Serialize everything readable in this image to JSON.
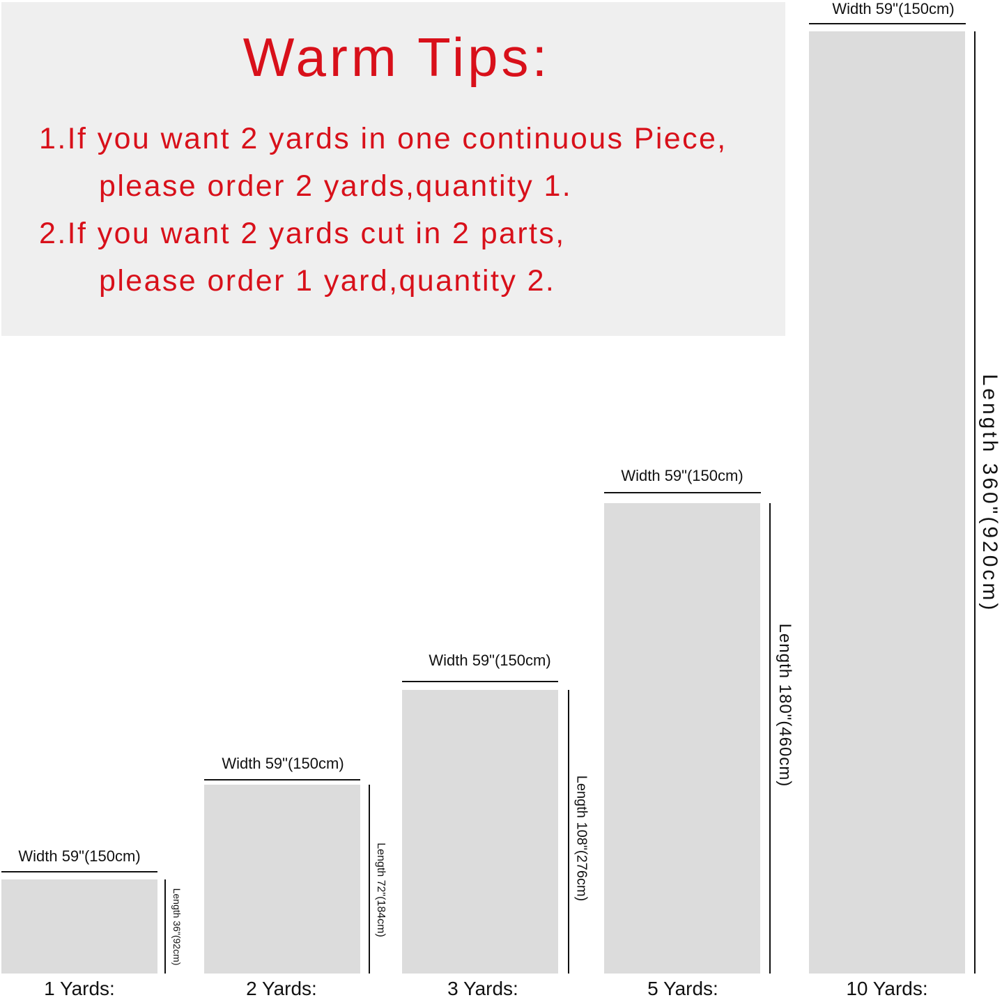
{
  "tips": {
    "title": "Warm Tips:",
    "lines": [
      "1.If you want 2 yards in one continuous Piece,",
      "please order 2 yards,quantity 1.",
      "2.If you want 2 yards cut in 2 parts,",
      "please order 1 yard,quantity 2."
    ],
    "color": "#d8101a"
  },
  "pieces": [
    {
      "yards": "1 Yards:",
      "width": "Width 59\"(150cm)",
      "length": "Length 36\"(92cm)"
    },
    {
      "yards": "2 Yards:",
      "width": "Width 59\"(150cm)",
      "length": "Length 72\"(184cm)"
    },
    {
      "yards": "3 Yards:",
      "width": "Width 59\"(150cm)",
      "length": "Length 108\"(276cm)"
    },
    {
      "yards": "5 Yards:",
      "width": "Width 59\"(150cm)",
      "length": "Length 180\"(460cm)"
    },
    {
      "yards": "10 Yards:",
      "width": "Width 59\"(150cm)",
      "length": "Length 360\"(920cm)"
    }
  ]
}
